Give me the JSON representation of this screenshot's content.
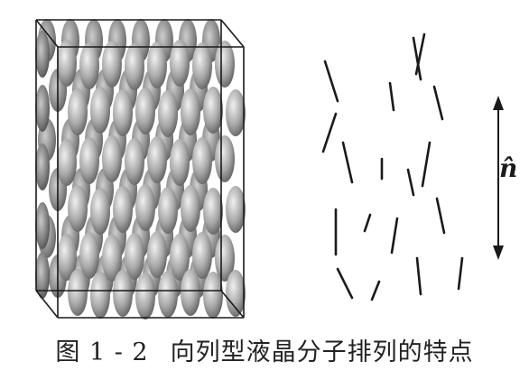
{
  "figure": {
    "caption_number": "图 1 - 2",
    "caption_text": "向列型液晶分子排列的特点",
    "director_label": "n̂",
    "colors": {
      "molecule_light": "#e6e6e6",
      "molecule_mid": "#9a9a9a",
      "molecule_dark": "#4a4a4a",
      "line": "#1a1a1a",
      "box": "#1a1a1a"
    }
  }
}
